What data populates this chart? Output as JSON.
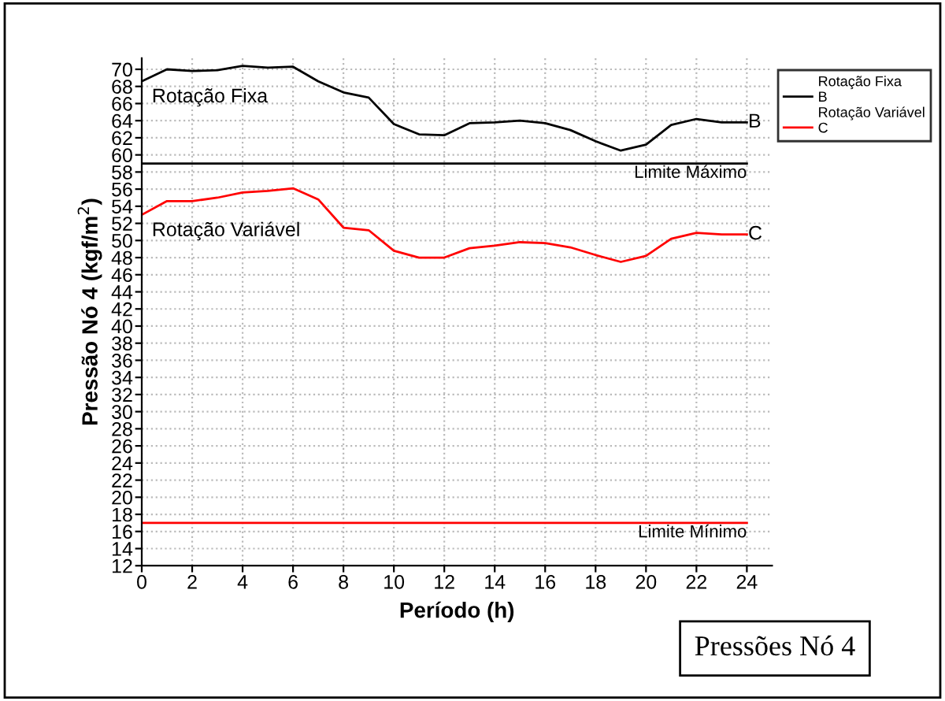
{
  "chart_data": {
    "type": "line",
    "title": "Pressões Nó 4",
    "xlabel": "Período (h)",
    "ylabel": "Pressão Nó 4 (kgf/m$^{2}$)",
    "x": [
      0,
      1,
      2,
      3,
      4,
      5,
      6,
      7,
      8,
      9,
      10,
      11,
      12,
      13,
      14,
      15,
      16,
      17,
      18,
      19,
      20,
      21,
      22,
      23,
      24
    ],
    "series": [
      {
        "name": "B",
        "color": "#000000",
        "values": [
          68.6,
          70.0,
          69.8,
          69.9,
          70.4,
          70.2,
          70.3,
          68.6,
          67.3,
          66.7,
          63.6,
          62.4,
          62.3,
          63.7,
          63.8,
          64.0,
          63.7,
          62.9,
          61.6,
          60.5,
          61.2,
          63.5,
          64.2,
          63.8,
          63.8
        ]
      },
      {
        "name": "C",
        "color": "#ff0000",
        "values": [
          53.0,
          54.6,
          54.6,
          55.0,
          55.6,
          55.8,
          56.1,
          54.8,
          51.5,
          51.2,
          48.8,
          48.0,
          48.0,
          49.1,
          49.4,
          49.8,
          49.7,
          49.2,
          48.3,
          47.5,
          48.2,
          50.2,
          50.9,
          50.7,
          50.7
        ]
      }
    ],
    "annotations": [
      "Rotação Fixa",
      "Rotação Variável",
      "Rotação Fixa",
      "Rotação Variável"
    ],
    "ref_lines": [
      {
        "axis": "y",
        "value": 59,
        "label": "Limite Máximo",
        "color": "#000000"
      },
      {
        "axis": "y",
        "value": 17,
        "label": "Limite Mínimo",
        "color": "#ff0000"
      }
    ],
    "xlim": [
      0,
      25
    ],
    "xticks": [
      0,
      2,
      4,
      6,
      8,
      10,
      12,
      14,
      16,
      18,
      20,
      22,
      24
    ],
    "ylim": [
      12,
      71.3
    ],
    "yticks": [
      12,
      14,
      16,
      18,
      20,
      22,
      24,
      26,
      28,
      30,
      32,
      34,
      36,
      38,
      40,
      42,
      44,
      46,
      48,
      50,
      52,
      54,
      56,
      58,
      60,
      62,
      64,
      66,
      68,
      70
    ],
    "grid": true,
    "legend": "right",
    "marker": "none",
    "line_style": "solid"
  }
}
